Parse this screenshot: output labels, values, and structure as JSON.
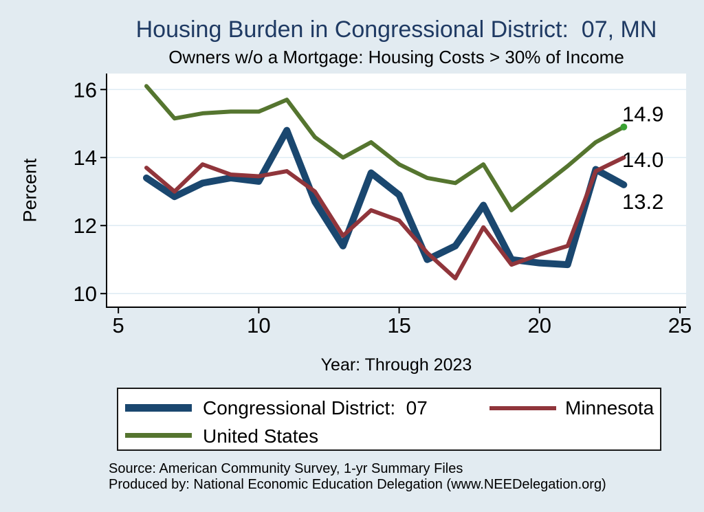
{
  "header": {
    "title": "Housing Burden in Congressional District:  07, MN",
    "subtitle": "Owners w/o a Mortgage: Housing Costs > 30% of Income"
  },
  "chart_data": {
    "type": "line",
    "title": "Housing Burden in Congressional District:  07, MN",
    "subtitle": "Owners w/o a Mortgage: Housing Costs > 30% of Income",
    "xlabel": "Year: Through 2023",
    "ylabel": "Percent",
    "x": [
      6,
      7,
      8,
      9,
      10,
      11,
      12,
      13,
      14,
      15,
      16,
      17,
      18,
      19,
      20,
      21,
      22,
      23
    ],
    "xticks": [
      "5",
      "10",
      "15",
      "20",
      "25"
    ],
    "yticks": [
      "16",
      "14",
      "12",
      "10"
    ],
    "xtick_values": [
      5,
      10,
      15,
      20,
      25
    ],
    "ytick_values": [
      16,
      14,
      12,
      10
    ],
    "xlim": [
      4.58,
      25.22
    ],
    "ylim": [
      9.6,
      16.47
    ],
    "grid": "horizontal",
    "legend_position": "bottom",
    "background": "#e2ebf1",
    "plot_background": "#ffffff",
    "gridline_color": "#dfecf4",
    "axis_color": "#000000",
    "title_color": "#1f3a63",
    "series": [
      {
        "name": "Congressional District:  07",
        "color": "#1a476f",
        "line_width": 10,
        "values": [
          13.4,
          12.85,
          13.25,
          13.4,
          13.3,
          14.8,
          12.7,
          11.4,
          13.55,
          12.9,
          11.0,
          11.4,
          12.6,
          11.0,
          10.9,
          10.85,
          13.65,
          13.2
        ],
        "end_label": "13.2"
      },
      {
        "name": "Minnesota",
        "color": "#90353b",
        "line_width": 6,
        "values": [
          13.7,
          13.0,
          13.8,
          13.5,
          13.45,
          13.6,
          13.0,
          11.7,
          12.45,
          12.15,
          11.2,
          10.45,
          11.95,
          10.85,
          11.15,
          11.4,
          13.6,
          14.0
        ],
        "end_label": "14.0"
      },
      {
        "name": "United States",
        "color": "#55752f",
        "line_width": 6,
        "values": [
          16.1,
          15.15,
          15.3,
          15.35,
          15.35,
          15.7,
          14.6,
          14.0,
          14.45,
          13.8,
          13.4,
          13.25,
          13.8,
          12.45,
          13.1,
          13.75,
          14.45,
          14.9
        ],
        "end_label": "14.9",
        "end_marker": true,
        "end_marker_color": "#3aa233"
      }
    ]
  },
  "footer": {
    "line1": "Source: American Community Survey, 1-yr Summary Files",
    "line2": "Produced by: National Economic Education Delegation (www.NEEDelegation.org)"
  }
}
